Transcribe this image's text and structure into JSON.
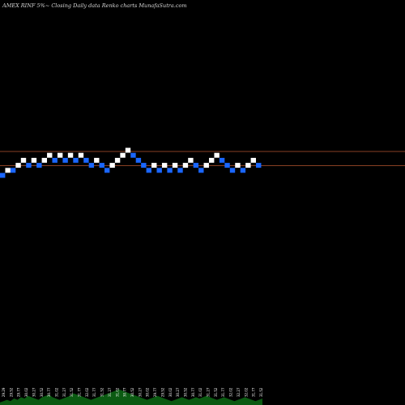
{
  "title": "AMEX  RINF 5%~  Closing Daily data  Renko  charts MunafaSutra.com",
  "chart_data": {
    "type": "renko",
    "title": "AMEX  RINF 5%~  Closing Daily data  Renko  charts MunafaSutra.com",
    "colors": {
      "background": "#000000",
      "up": "#ffffff",
      "down": "#1a66ff",
      "level_line": "#b5552f",
      "volume": "#0b5a12",
      "tick_text": "#ffffff"
    },
    "bricks": [
      {
        "level": 0,
        "dir": "down"
      },
      {
        "level": 1,
        "dir": "up"
      },
      {
        "level": 1,
        "dir": "down"
      },
      {
        "level": 2,
        "dir": "up"
      },
      {
        "level": 3,
        "dir": "up"
      },
      {
        "level": 2,
        "dir": "down"
      },
      {
        "level": 3,
        "dir": "up"
      },
      {
        "level": 2,
        "dir": "down"
      },
      {
        "level": 3,
        "dir": "up"
      },
      {
        "level": 4,
        "dir": "up"
      },
      {
        "level": 3,
        "dir": "down"
      },
      {
        "level": 4,
        "dir": "up"
      },
      {
        "level": 3,
        "dir": "down"
      },
      {
        "level": 4,
        "dir": "up"
      },
      {
        "level": 3,
        "dir": "down"
      },
      {
        "level": 4,
        "dir": "up"
      },
      {
        "level": 3,
        "dir": "down"
      },
      {
        "level": 2,
        "dir": "down"
      },
      {
        "level": 3,
        "dir": "up"
      },
      {
        "level": 2,
        "dir": "down"
      },
      {
        "level": 1,
        "dir": "down"
      },
      {
        "level": 2,
        "dir": "up"
      },
      {
        "level": 3,
        "dir": "up"
      },
      {
        "level": 4,
        "dir": "up"
      },
      {
        "level": 5,
        "dir": "up"
      },
      {
        "level": 4,
        "dir": "down"
      },
      {
        "level": 3,
        "dir": "down"
      },
      {
        "level": 2,
        "dir": "down"
      },
      {
        "level": 1,
        "dir": "down"
      },
      {
        "level": 2,
        "dir": "up"
      },
      {
        "level": 1,
        "dir": "down"
      },
      {
        "level": 2,
        "dir": "up"
      },
      {
        "level": 1,
        "dir": "down"
      },
      {
        "level": 2,
        "dir": "up"
      },
      {
        "level": 1,
        "dir": "down"
      },
      {
        "level": 2,
        "dir": "up"
      },
      {
        "level": 3,
        "dir": "up"
      },
      {
        "level": 2,
        "dir": "down"
      },
      {
        "level": 1,
        "dir": "down"
      },
      {
        "level": 2,
        "dir": "up"
      },
      {
        "level": 3,
        "dir": "up"
      },
      {
        "level": 4,
        "dir": "up"
      },
      {
        "level": 3,
        "dir": "down"
      },
      {
        "level": 2,
        "dir": "down"
      },
      {
        "level": 1,
        "dir": "down"
      },
      {
        "level": 2,
        "dir": "up"
      },
      {
        "level": 1,
        "dir": "down"
      },
      {
        "level": 2,
        "dir": "up"
      },
      {
        "level": 3,
        "dir": "up"
      },
      {
        "level": 2,
        "dir": "down"
      }
    ],
    "level_lines": [
      5,
      3
    ],
    "x_tick_labels": [
      "29.29",
      "29.52",
      "29.77",
      "30.02",
      "30.27",
      "30.52",
      "30.77",
      "31.02",
      "31.27",
      "31.52",
      "31.77",
      "32.02",
      "31.77",
      "31.52",
      "31.27",
      "31.02",
      "30.77",
      "30.52",
      "30.27",
      "30.02",
      "29.77",
      "29.52",
      "30.02",
      "30.27",
      "30.52",
      "30.77",
      "31.02",
      "31.27",
      "31.52",
      "31.77",
      "32.02",
      "32.27",
      "32.02",
      "31.77",
      "31.52"
    ],
    "volume": [
      2,
      3,
      4,
      3,
      5,
      4,
      6,
      5,
      7,
      6,
      5,
      4,
      6,
      7,
      8,
      6,
      5,
      4,
      5,
      6,
      7,
      9,
      8,
      7,
      6,
      5,
      4,
      5,
      6,
      7,
      8,
      9,
      10,
      11,
      12,
      11,
      10,
      9,
      8,
      7,
      6,
      5,
      4,
      5,
      6,
      7,
      6,
      5,
      4,
      3,
      4,
      5,
      6,
      5,
      4,
      5,
      6,
      5,
      6,
      7,
      6,
      5,
      4,
      5,
      6,
      5,
      4,
      3,
      4,
      5,
      6,
      5,
      4,
      3,
      4,
      5
    ]
  }
}
